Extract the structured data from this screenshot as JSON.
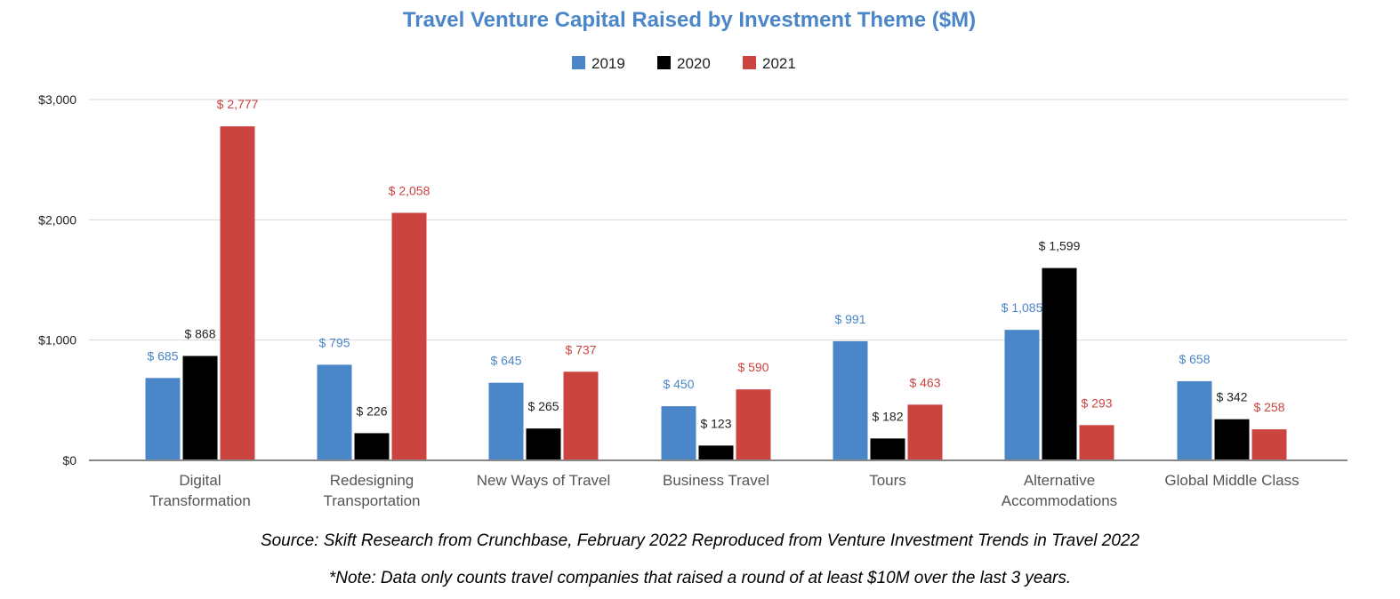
{
  "chart_data": {
    "type": "bar",
    "title": "Travel Venture Capital Raised by Investment Theme ($M)",
    "xlabel": "",
    "ylabel": "",
    "ylim": [
      0,
      3000
    ],
    "yticks": [
      0,
      1000,
      2000,
      3000
    ],
    "ytick_labels": [
      "$0",
      "$1,000",
      "$2,000",
      "$3,000"
    ],
    "grid": true,
    "legend_position": "top-center",
    "categories": [
      [
        "Digital",
        "Transformation"
      ],
      [
        "Redesigning",
        "Transportation"
      ],
      [
        "New Ways of Travel"
      ],
      [
        "Business Travel"
      ],
      [
        "Tours"
      ],
      [
        "Alternative",
        "Accommodations"
      ],
      [
        "Global Middle Class"
      ]
    ],
    "series": [
      {
        "name": "2019",
        "color": "#4a86c8",
        "values": [
          685,
          795,
          645,
          450,
          991,
          1085,
          658
        ],
        "labels": [
          "$ 685",
          "$ 795",
          "$ 645",
          "$ 450",
          "$ 991",
          "$ 1,085",
          "$ 658"
        ]
      },
      {
        "name": "2020",
        "color": "#000000",
        "values": [
          868,
          226,
          265,
          123,
          182,
          1599,
          342
        ],
        "labels": [
          "$ 868",
          "$ 226",
          "$ 265",
          "$ 123",
          "$ 182",
          "$ 1,599",
          "$ 342"
        ]
      },
      {
        "name": "2021",
        "color": "#cc4440",
        "values": [
          2777,
          2058,
          737,
          590,
          463,
          293,
          258
        ],
        "labels": [
          "$ 2,777",
          "$ 2,058",
          "$ 737",
          "$ 590",
          "$ 463",
          "$ 293",
          "$ 258"
        ]
      }
    ],
    "title_color": "#4a86c8",
    "gridline_color": "#d9d9d9",
    "axis_color": "#888888",
    "label_color_2020": "#222222"
  },
  "notes": {
    "source": "Source: Skift Research from Crunchbase, February 2022 Reproduced from Venture Investment Trends in Travel 2022",
    "data": "*Note: Data only counts travel companies that raised a round of at least $10M over the last 3 years."
  }
}
